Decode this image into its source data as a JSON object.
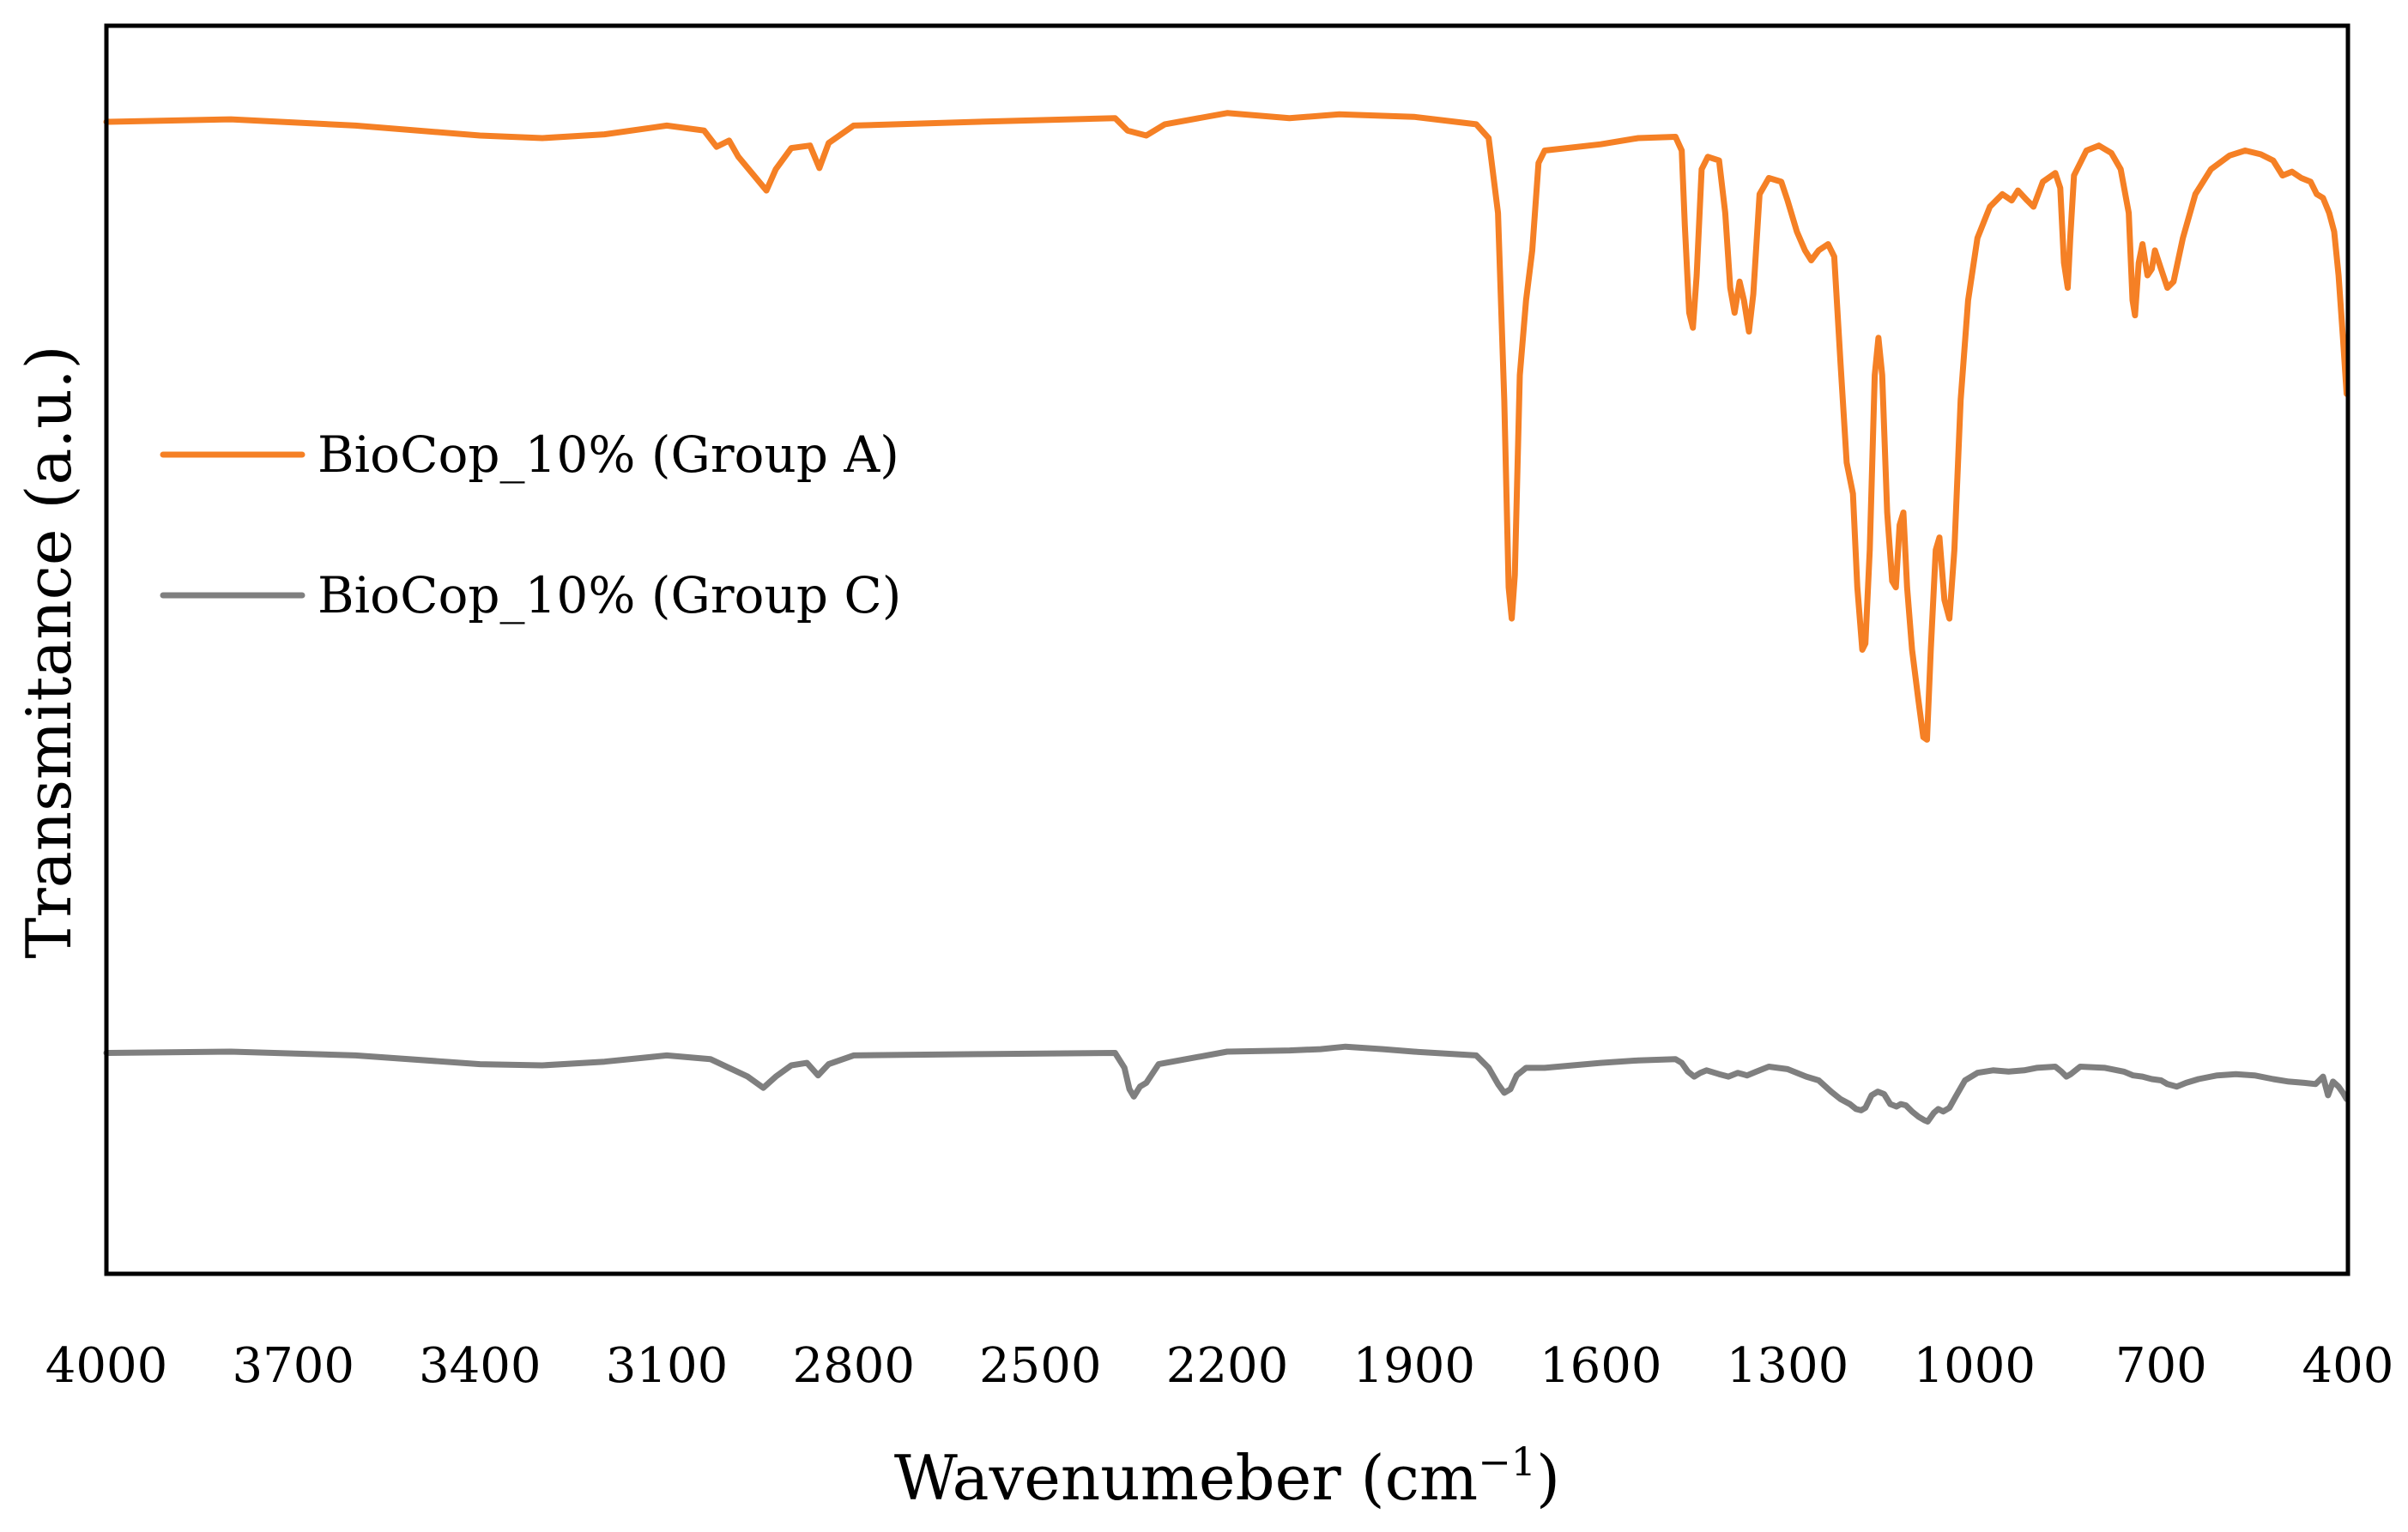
{
  "chart_data": {
    "type": "line",
    "title": "",
    "xlabel": "Wavenumeber (cm",
    "xlabel_sup": "−1",
    "xlabel_close": ")",
    "ylabel": "Transmitance (a.u.)",
    "xlim": [
      4000,
      400
    ],
    "x_reversed": true,
    "ylim": [
      0,
      100
    ],
    "y_ticks_shown": false,
    "x_ticks": [
      "4000",
      "3700",
      "3400",
      "3100",
      "2800",
      "2500",
      "2200",
      "1900",
      "1600",
      "1300",
      "1000",
      "700",
      "400"
    ],
    "legend_position": "upper-left",
    "grid": false,
    "series": [
      {
        "name": "BioCop_10% (Group A)",
        "color": "#F58025",
        "points": [
          [
            4000,
            92.3
          ],
          [
            3800,
            92.5
          ],
          [
            3600,
            92.0
          ],
          [
            3400,
            91.2
          ],
          [
            3300,
            91.0
          ],
          [
            3200,
            91.3
          ],
          [
            3100,
            92.0
          ],
          [
            3040,
            91.6
          ],
          [
            3020,
            90.3
          ],
          [
            3000,
            90.8
          ],
          [
            2985,
            89.5
          ],
          [
            2960,
            88.0
          ],
          [
            2940,
            86.8
          ],
          [
            2925,
            88.5
          ],
          [
            2900,
            90.2
          ],
          [
            2870,
            90.4
          ],
          [
            2855,
            88.6
          ],
          [
            2840,
            90.6
          ],
          [
            2800,
            92.0
          ],
          [
            2600,
            92.3
          ],
          [
            2380,
            92.6
          ],
          [
            2360,
            91.6
          ],
          [
            2330,
            91.2
          ],
          [
            2300,
            92.1
          ],
          [
            2200,
            93.0
          ],
          [
            2100,
            92.6
          ],
          [
            2020,
            92.9
          ],
          [
            1900,
            92.7
          ],
          [
            1800,
            92.1
          ],
          [
            1780,
            91.0
          ],
          [
            1765,
            85.0
          ],
          [
            1755,
            70.0
          ],
          [
            1748,
            55.0
          ],
          [
            1743,
            52.5
          ],
          [
            1738,
            56.0
          ],
          [
            1730,
            72.0
          ],
          [
            1720,
            78.0
          ],
          [
            1710,
            82.0
          ],
          [
            1700,
            89.0
          ],
          [
            1690,
            90.0
          ],
          [
            1600,
            90.5
          ],
          [
            1540,
            91.0
          ],
          [
            1480,
            91.1
          ],
          [
            1470,
            90.0
          ],
          [
            1465,
            84.0
          ],
          [
            1458,
            77.0
          ],
          [
            1452,
            75.8
          ],
          [
            1446,
            80.0
          ],
          [
            1438,
            88.5
          ],
          [
            1428,
            89.5
          ],
          [
            1410,
            89.2
          ],
          [
            1400,
            85.0
          ],
          [
            1392,
            79.0
          ],
          [
            1385,
            77.0
          ],
          [
            1377,
            79.5
          ],
          [
            1370,
            78.0
          ],
          [
            1362,
            75.5
          ],
          [
            1355,
            78.5
          ],
          [
            1345,
            86.5
          ],
          [
            1330,
            87.8
          ],
          [
            1310,
            87.5
          ],
          [
            1300,
            86.0
          ],
          [
            1285,
            83.5
          ],
          [
            1272,
            82.0
          ],
          [
            1262,
            81.2
          ],
          [
            1250,
            82.0
          ],
          [
            1235,
            82.5
          ],
          [
            1225,
            81.5
          ],
          [
            1215,
            73.0
          ],
          [
            1205,
            65.0
          ],
          [
            1195,
            62.5
          ],
          [
            1188,
            55.0
          ],
          [
            1180,
            50.0
          ],
          [
            1175,
            50.5
          ],
          [
            1168,
            58.0
          ],
          [
            1160,
            72.0
          ],
          [
            1154,
            75.0
          ],
          [
            1148,
            72.0
          ],
          [
            1140,
            61.0
          ],
          [
            1132,
            55.5
          ],
          [
            1126,
            55.0
          ],
          [
            1120,
            60.0
          ],
          [
            1114,
            61.0
          ],
          [
            1108,
            55.0
          ],
          [
            1100,
            50.0
          ],
          [
            1090,
            46.0
          ],
          [
            1082,
            43.0
          ],
          [
            1076,
            42.8
          ],
          [
            1070,
            50.0
          ],
          [
            1062,
            58.0
          ],
          [
            1056,
            59.0
          ],
          [
            1048,
            54.0
          ],
          [
            1040,
            52.5
          ],
          [
            1032,
            58.0
          ],
          [
            1022,
            70.0
          ],
          [
            1010,
            78.0
          ],
          [
            995,
            83.0
          ],
          [
            975,
            85.5
          ],
          [
            955,
            86.5
          ],
          [
            940,
            86.0
          ],
          [
            930,
            86.8
          ],
          [
            915,
            86.0
          ],
          [
            905,
            85.5
          ],
          [
            890,
            87.5
          ],
          [
            870,
            88.2
          ],
          [
            862,
            87.0
          ],
          [
            856,
            81.0
          ],
          [
            850,
            79.0
          ],
          [
            846,
            83.0
          ],
          [
            840,
            88.0
          ],
          [
            820,
            90.0
          ],
          [
            800,
            90.4
          ],
          [
            780,
            89.8
          ],
          [
            765,
            88.5
          ],
          [
            752,
            85.0
          ],
          [
            746,
            78.0
          ],
          [
            742,
            76.8
          ],
          [
            736,
            81.0
          ],
          [
            730,
            82.5
          ],
          [
            722,
            80.0
          ],
          [
            715,
            80.5
          ],
          [
            710,
            82.0
          ],
          [
            700,
            80.5
          ],
          [
            690,
            79.0
          ],
          [
            680,
            79.5
          ],
          [
            665,
            83.0
          ],
          [
            645,
            86.5
          ],
          [
            620,
            88.5
          ],
          [
            590,
            89.6
          ],
          [
            565,
            90.0
          ],
          [
            540,
            89.7
          ],
          [
            520,
            89.2
          ],
          [
            505,
            88.0
          ],
          [
            490,
            88.3
          ],
          [
            475,
            87.8
          ],
          [
            460,
            87.5
          ],
          [
            450,
            86.5
          ],
          [
            440,
            86.2
          ],
          [
            430,
            85.0
          ],
          [
            422,
            83.5
          ],
          [
            415,
            80.0
          ],
          [
            408,
            75.0
          ],
          [
            402,
            70.5
          ]
        ]
      },
      {
        "name": "BioCop_10% (Group C)",
        "color": "#7F7F7F",
        "points": [
          [
            4000,
            17.7
          ],
          [
            3800,
            17.8
          ],
          [
            3600,
            17.5
          ],
          [
            3400,
            16.8
          ],
          [
            3300,
            16.7
          ],
          [
            3200,
            17.0
          ],
          [
            3100,
            17.5
          ],
          [
            3030,
            17.2
          ],
          [
            3000,
            16.5
          ],
          [
            2970,
            15.8
          ],
          [
            2945,
            14.9
          ],
          [
            2925,
            15.8
          ],
          [
            2900,
            16.7
          ],
          [
            2875,
            16.9
          ],
          [
            2857,
            15.9
          ],
          [
            2840,
            16.8
          ],
          [
            2800,
            17.5
          ],
          [
            2600,
            17.6
          ],
          [
            2380,
            17.7
          ],
          [
            2365,
            16.5
          ],
          [
            2357,
            14.8
          ],
          [
            2350,
            14.2
          ],
          [
            2340,
            15.0
          ],
          [
            2330,
            15.3
          ],
          [
            2310,
            16.8
          ],
          [
            2200,
            17.8
          ],
          [
            2100,
            17.9
          ],
          [
            2050,
            18.0
          ],
          [
            2010,
            18.2
          ],
          [
            1950,
            18.0
          ],
          [
            1900,
            17.8
          ],
          [
            1800,
            17.5
          ],
          [
            1780,
            16.5
          ],
          [
            1765,
            15.2
          ],
          [
            1755,
            14.5
          ],
          [
            1745,
            14.8
          ],
          [
            1735,
            15.9
          ],
          [
            1720,
            16.5
          ],
          [
            1690,
            16.5
          ],
          [
            1600,
            16.9
          ],
          [
            1540,
            17.1
          ],
          [
            1480,
            17.2
          ],
          [
            1470,
            16.9
          ],
          [
            1460,
            16.2
          ],
          [
            1450,
            15.8
          ],
          [
            1440,
            16.1
          ],
          [
            1430,
            16.3
          ],
          [
            1410,
            16.0
          ],
          [
            1395,
            15.8
          ],
          [
            1380,
            16.1
          ],
          [
            1365,
            15.9
          ],
          [
            1350,
            16.2
          ],
          [
            1330,
            16.6
          ],
          [
            1300,
            16.4
          ],
          [
            1270,
            15.8
          ],
          [
            1250,
            15.5
          ],
          [
            1230,
            14.6
          ],
          [
            1215,
            14.0
          ],
          [
            1200,
            13.6
          ],
          [
            1190,
            13.2
          ],
          [
            1182,
            13.1
          ],
          [
            1175,
            13.3
          ],
          [
            1165,
            14.3
          ],
          [
            1155,
            14.6
          ],
          [
            1145,
            14.4
          ],
          [
            1135,
            13.6
          ],
          [
            1125,
            13.4
          ],
          [
            1118,
            13.6
          ],
          [
            1110,
            13.5
          ],
          [
            1100,
            13.0
          ],
          [
            1090,
            12.6
          ],
          [
            1080,
            12.3
          ],
          [
            1075,
            12.2
          ],
          [
            1065,
            12.9
          ],
          [
            1058,
            13.2
          ],
          [
            1050,
            13.0
          ],
          [
            1040,
            13.3
          ],
          [
            1030,
            14.2
          ],
          [
            1015,
            15.5
          ],
          [
            995,
            16.1
          ],
          [
            970,
            16.3
          ],
          [
            945,
            16.2
          ],
          [
            920,
            16.3
          ],
          [
            900,
            16.5
          ],
          [
            870,
            16.6
          ],
          [
            860,
            16.2
          ],
          [
            852,
            15.8
          ],
          [
            845,
            16.0
          ],
          [
            830,
            16.6
          ],
          [
            790,
            16.5
          ],
          [
            760,
            16.2
          ],
          [
            745,
            15.9
          ],
          [
            730,
            15.8
          ],
          [
            715,
            15.6
          ],
          [
            700,
            15.5
          ],
          [
            690,
            15.2
          ],
          [
            675,
            15.0
          ],
          [
            660,
            15.3
          ],
          [
            640,
            15.6
          ],
          [
            610,
            15.9
          ],
          [
            580,
            16.0
          ],
          [
            550,
            15.9
          ],
          [
            520,
            15.6
          ],
          [
            495,
            15.4
          ],
          [
            470,
            15.3
          ],
          [
            452,
            15.2
          ],
          [
            440,
            15.8
          ],
          [
            432,
            14.3
          ],
          [
            424,
            15.4
          ],
          [
            415,
            15.0
          ],
          [
            408,
            14.5
          ],
          [
            402,
            14.0
          ]
        ]
      }
    ]
  }
}
